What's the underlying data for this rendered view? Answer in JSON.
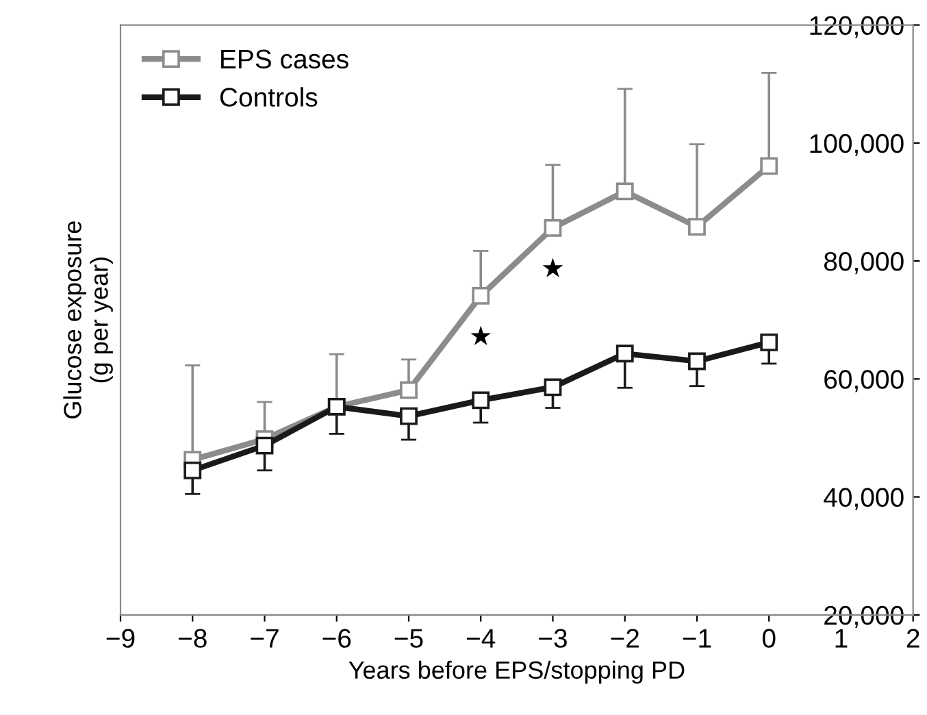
{
  "chart_data": {
    "type": "line",
    "xlabel": "Years before EPS/stopping PD",
    "ylabel": "Glucose exposure\n(g per year)",
    "x": [
      -8,
      -7,
      -6,
      -5,
      -4,
      -3,
      -2,
      -1,
      0
    ],
    "series": [
      {
        "name": "EPS cases",
        "color": "#8c8c8c",
        "values": [
          46300,
          49800,
          55300,
          58100,
          74100,
          85600,
          91800,
          85800,
          96100
        ],
        "errors": [
          [
            46300,
            62300
          ],
          [
            49800,
            56100
          ],
          [
            55300,
            64200
          ],
          [
            58100,
            63300
          ],
          [
            74100,
            81700
          ],
          [
            85600,
            96300
          ],
          [
            91800,
            109200
          ],
          [
            85800,
            99800
          ],
          [
            96100,
            111900
          ]
        ]
      },
      {
        "name": "Controls",
        "color": "#1a1a1a",
        "values": [
          44500,
          48700,
          55300,
          53700,
          56400,
          58600,
          64300,
          63000,
          66200
        ],
        "errors": [
          [
            40500,
            44500
          ],
          [
            44500,
            48700
          ],
          [
            50700,
            55300
          ],
          [
            49700,
            53700
          ],
          [
            52600,
            56400
          ],
          [
            55100,
            58600
          ],
          [
            58500,
            64300
          ],
          [
            58800,
            63000
          ],
          [
            62600,
            66200
          ]
        ]
      }
    ],
    "xlim": [
      -9,
      2
    ],
    "xticks": [
      -9,
      -8,
      -7,
      -6,
      -5,
      -4,
      -3,
      -2,
      -1,
      0,
      1,
      2
    ],
    "ylim": [
      20000,
      120000
    ],
    "yticks": [
      {
        "value": 20000,
        "label": "20,000"
      },
      {
        "value": 40000,
        "label": "40,000"
      },
      {
        "value": 60000,
        "label": "60,000"
      },
      {
        "value": 80000,
        "label": "80,000"
      },
      {
        "value": 100000,
        "label": "100,000"
      },
      {
        "value": 120000,
        "label": "120,000"
      }
    ],
    "annotations": [
      {
        "text": "★",
        "x": -4,
        "y": 74100
      },
      {
        "text": "★",
        "x": -3,
        "y": 85600
      }
    ],
    "marker": "square",
    "line_style": "solid",
    "legend": "top left",
    "grid": false
  }
}
